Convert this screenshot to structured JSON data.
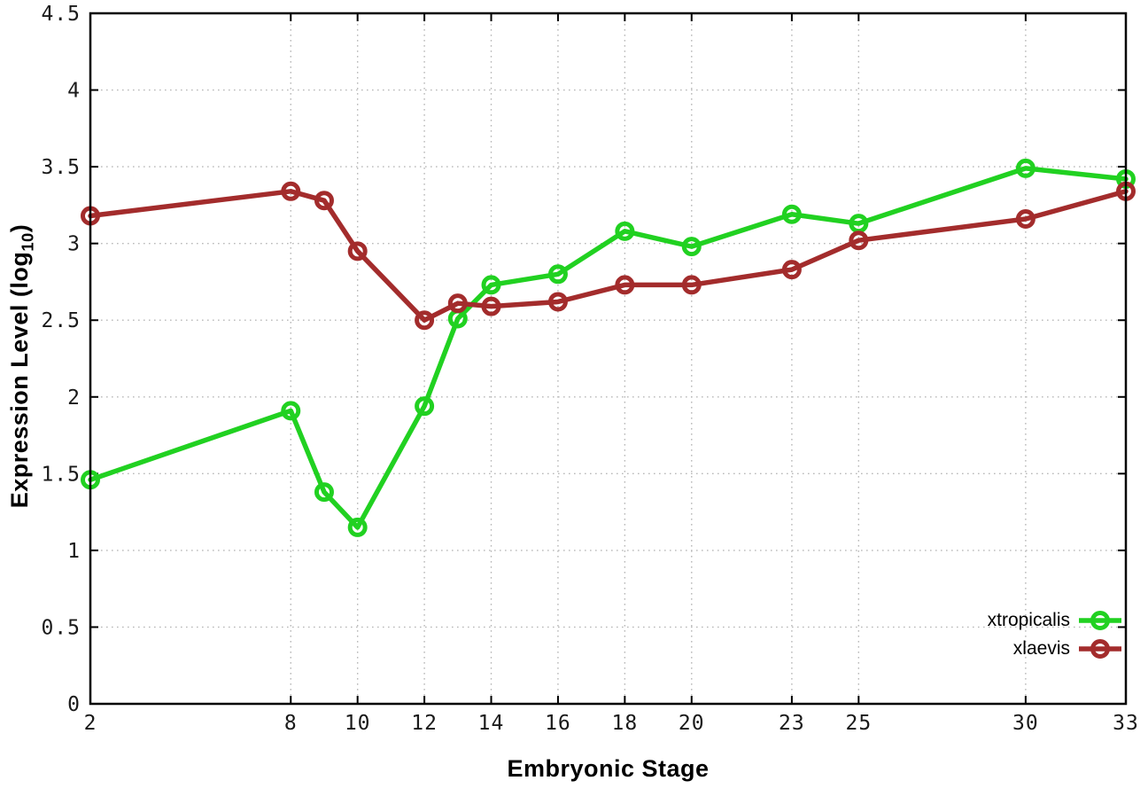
{
  "chart_data": {
    "type": "line",
    "title": "",
    "xlabel": "Embryonic Stage",
    "ylabel": "Expression Level (log10)",
    "ylabel_prefix": "Expression Level (log",
    "ylabel_sub": "10",
    "ylabel_suffix": ")",
    "xlim": [
      2,
      33
    ],
    "ylim": [
      0,
      4.5
    ],
    "grid": true,
    "legend_position": "bottom-right",
    "x_ticks": [
      2,
      8,
      10,
      12,
      14,
      16,
      18,
      20,
      23,
      25,
      30,
      33
    ],
    "x_tick_labels": [
      "2",
      "8",
      "10",
      "12",
      "14",
      "16",
      "18",
      "20",
      "23",
      "25",
      "30",
      "33"
    ],
    "y_ticks": [
      0,
      0.5,
      1,
      1.5,
      2,
      2.5,
      3,
      3.5,
      4,
      4.5
    ],
    "y_tick_labels": [
      "0",
      "0.5",
      "1",
      "1.5",
      "2",
      "2.5",
      "3",
      "3.5",
      "4",
      "4.5"
    ],
    "x": [
      2,
      8,
      9,
      10,
      12,
      13,
      14,
      16,
      18,
      20,
      23,
      25,
      30,
      33
    ],
    "series": [
      {
        "name": "xtropicalis",
        "color": "#21d121",
        "values": [
          1.46,
          1.91,
          1.38,
          1.15,
          1.94,
          2.51,
          2.73,
          2.8,
          3.08,
          2.98,
          3.19,
          3.13,
          3.49,
          3.42
        ]
      },
      {
        "name": "xlaevis",
        "color": "#a32c2c",
        "values": [
          3.18,
          3.34,
          3.28,
          2.95,
          2.5,
          2.61,
          2.59,
          2.62,
          2.73,
          2.73,
          2.83,
          3.02,
          3.16,
          3.34
        ]
      }
    ],
    "colors": {
      "border": "#000000",
      "grid": "#b8b8b8",
      "tick_text": "#1a1a1a"
    }
  }
}
